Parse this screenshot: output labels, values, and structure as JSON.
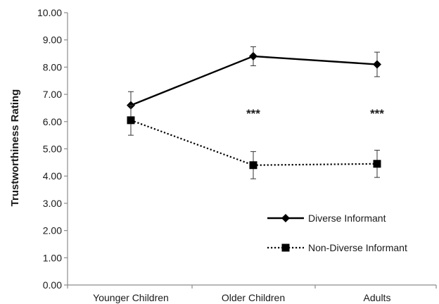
{
  "chart_data": {
    "type": "line",
    "categories": [
      "Younger Children",
      "Older Children",
      "Adults"
    ],
    "ylabel": "Trustworthiness Rating",
    "xlabel": "",
    "title": "",
    "ylim": [
      0,
      10
    ],
    "y_tick_step": 1,
    "y_tick_labels": [
      "0.00",
      "1.00",
      "2.00",
      "3.00",
      "4.00",
      "5.00",
      "6.00",
      "7.00",
      "8.00",
      "9.00",
      "10.00"
    ],
    "grid": false,
    "legend_position": "bottom-right",
    "series": [
      {
        "name": "Diverse Informant",
        "values": [
          6.6,
          8.4,
          8.1
        ],
        "error": [
          0.5,
          0.35,
          0.45
        ],
        "marker": "diamond",
        "line_style": "solid",
        "color": "#000000"
      },
      {
        "name": "Non-Diverse Informant",
        "values": [
          6.05,
          4.4,
          4.45
        ],
        "error": [
          0.55,
          0.5,
          0.5
        ],
        "marker": "square",
        "line_style": "dotted",
        "color": "#000000"
      }
    ],
    "annotations": [
      {
        "category": "Older Children",
        "text": "***",
        "y": 6.3
      },
      {
        "category": "Adults",
        "text": "***",
        "y": 6.3
      }
    ]
  }
}
